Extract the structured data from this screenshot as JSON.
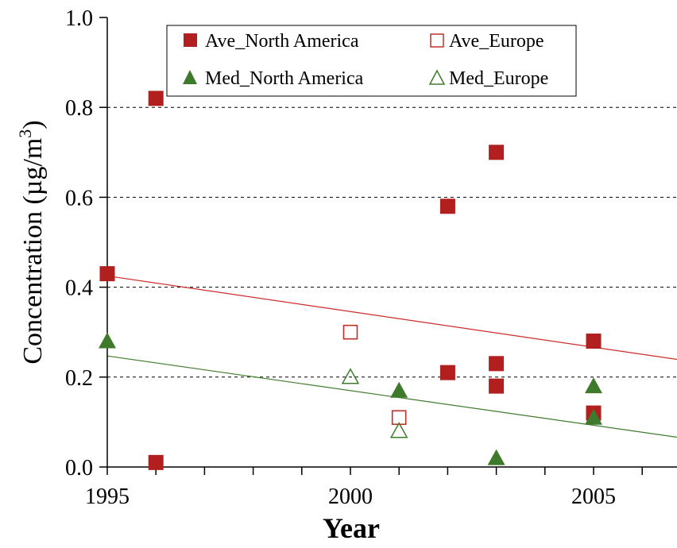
{
  "chart_data": {
    "type": "scatter",
    "title": "",
    "xlabel": "Year",
    "ylabel_main": "Concentration (µg/m",
    "ylabel_sup": "3",
    "ylabel_close": ")",
    "xlim": [
      1995,
      2006.8
    ],
    "ylim": [
      0,
      1.0
    ],
    "x_ticks": [
      1995,
      2000,
      2005
    ],
    "x_tick_labels": [
      "1995",
      "2000",
      "2005"
    ],
    "x_minor_step": 1,
    "y_ticks": [
      0.0,
      0.2,
      0.4,
      0.6,
      0.8,
      1.0
    ],
    "y_tick_labels": [
      "0.0",
      "0.2",
      "0.4",
      "0.6",
      "0.8",
      "1.0"
    ],
    "grid": "horizontal dashed",
    "legend_position": "top",
    "series": [
      {
        "name": "Ave_North America",
        "marker": "square-filled",
        "color": "#b11f1f",
        "points": [
          [
            1995,
            0.43
          ],
          [
            1996,
            0.82
          ],
          [
            1996,
            0.01
          ],
          [
            2002,
            0.58
          ],
          [
            2002,
            0.21
          ],
          [
            2003,
            0.7
          ],
          [
            2003,
            0.23
          ],
          [
            2003,
            0.18
          ],
          [
            2005,
            0.28
          ],
          [
            2005,
            0.12
          ]
        ]
      },
      {
        "name": "Ave_Europe",
        "marker": "square-open",
        "color": "#c0302a",
        "points": [
          [
            2000,
            0.3
          ],
          [
            2001,
            0.11
          ]
        ]
      },
      {
        "name": "Med_North America",
        "marker": "triangle-filled",
        "color": "#3f7a2c",
        "points": [
          [
            1995,
            0.28
          ],
          [
            2001,
            0.17
          ],
          [
            2003,
            0.02
          ],
          [
            2005,
            0.18
          ],
          [
            2005,
            0.11
          ]
        ]
      },
      {
        "name": "Med_Europe",
        "marker": "triangle-open",
        "color": "#3f7a2c",
        "points": [
          [
            2000,
            0.2
          ],
          [
            2001,
            0.08
          ]
        ]
      }
    ],
    "trendlines": [
      {
        "series": "Ave",
        "color": "#cc2a2a",
        "from": [
          1995,
          0.425
        ],
        "to": [
          2006.8,
          0.238
        ]
      },
      {
        "series": "Med",
        "color": "#3f7a2c",
        "from": [
          1995,
          0.247
        ],
        "to": [
          2006.8,
          0.065
        ]
      }
    ]
  }
}
